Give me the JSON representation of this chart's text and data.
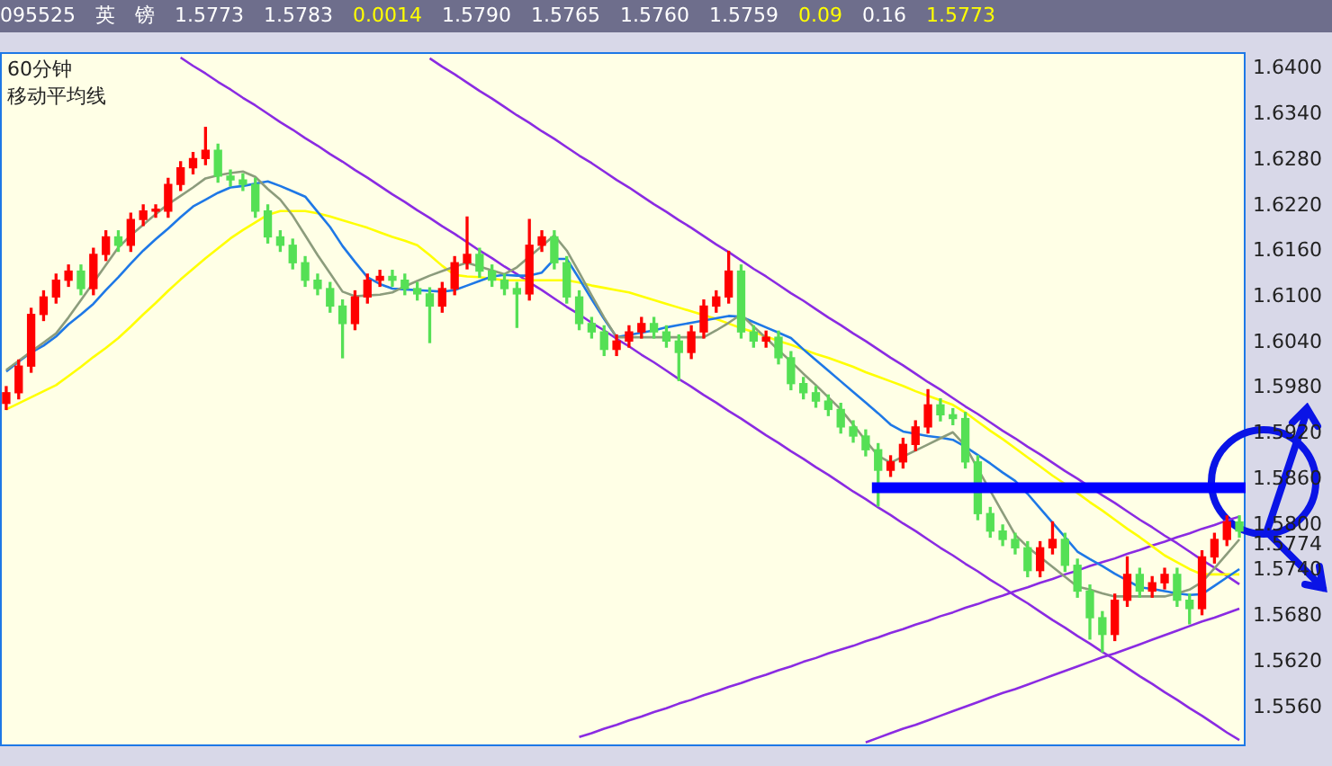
{
  "chart_data": {
    "type": "candlestick",
    "title": "60分钟",
    "subtitle": "移动平均线",
    "annotations": [
      "095525",
      "英",
      "镑",
      "1.5773",
      "1.5783",
      "0.0014",
      "1.5790",
      "1.5765",
      "1.5760",
      "1.5759",
      "0.09",
      "0.16",
      "1.5773"
    ],
    "categories": [
      null,
      null,
      null,
      null,
      null,
      null,
      null,
      null,
      null,
      null,
      null,
      null,
      null,
      null,
      null,
      null,
      null,
      null,
      null,
      null,
      null,
      null,
      null,
      null,
      null,
      null,
      null,
      null,
      null,
      null,
      null,
      null,
      null,
      null,
      null,
      null,
      null,
      null,
      null,
      null,
      null,
      null,
      null,
      null,
      null,
      null,
      null,
      null,
      null,
      null,
      null,
      null,
      null,
      null,
      null,
      null,
      null,
      null,
      null,
      null,
      null,
      null,
      null,
      null,
      null,
      null,
      null,
      null,
      null,
      null,
      null,
      null,
      null,
      null,
      null,
      null,
      null,
      null,
      null,
      null,
      null,
      null,
      null,
      null,
      null,
      null,
      null,
      null,
      null,
      null,
      null,
      null,
      null,
      null,
      null,
      null,
      null,
      null,
      null,
      null
    ],
    "ohlc": [
      [
        1.596,
        1.5982,
        1.5952,
        1.5974
      ],
      [
        1.5974,
        1.6017,
        1.5966,
        1.6009
      ],
      [
        1.6009,
        1.6085,
        1.6001,
        1.6077
      ],
      [
        1.6077,
        1.6108,
        1.6069,
        1.61
      ],
      [
        1.61,
        1.613,
        1.6092,
        1.6122
      ],
      [
        1.6122,
        1.6142,
        1.6114,
        1.6134
      ],
      [
        1.6134,
        1.6142,
        1.6103,
        1.6111
      ],
      [
        1.6111,
        1.6164,
        1.6103,
        1.6156
      ],
      [
        1.6156,
        1.6187,
        1.6148,
        1.6179
      ],
      [
        1.6179,
        1.6187,
        1.616,
        1.6168
      ],
      [
        1.6168,
        1.621,
        1.616,
        1.6202
      ],
      [
        1.6202,
        1.6221,
        1.6194,
        1.6213
      ],
      [
        1.6213,
        1.6221,
        1.6205,
        1.6213
      ],
      [
        1.6213,
        1.6256,
        1.6205,
        1.6248
      ],
      [
        1.6248,
        1.6278,
        1.624,
        1.627
      ],
      [
        1.627,
        1.629,
        1.6262,
        1.6282
      ],
      [
        1.6282,
        1.6323,
        1.6274,
        1.6293
      ],
      [
        1.6293,
        1.6301,
        1.6251,
        1.6259
      ],
      [
        1.6259,
        1.6267,
        1.6246,
        1.6254
      ],
      [
        1.6254,
        1.6262,
        1.624,
        1.6248
      ],
      [
        1.6248,
        1.6256,
        1.6205,
        1.6213
      ],
      [
        1.6213,
        1.6221,
        1.6171,
        1.6179
      ],
      [
        1.6179,
        1.6187,
        1.616,
        1.6168
      ],
      [
        1.6168,
        1.6176,
        1.6137,
        1.6145
      ],
      [
        1.6145,
        1.6153,
        1.6114,
        1.6122
      ],
      [
        1.6122,
        1.613,
        1.6103,
        1.6111
      ],
      [
        1.6111,
        1.6119,
        1.608,
        1.6088
      ],
      [
        1.6088,
        1.6096,
        1.602,
        1.6065
      ],
      [
        1.6065,
        1.6108,
        1.6057,
        1.61
      ],
      [
        1.61,
        1.613,
        1.6092,
        1.6122
      ],
      [
        1.6122,
        1.6135,
        1.6114,
        1.6127
      ],
      [
        1.6127,
        1.6135,
        1.6114,
        1.6122
      ],
      [
        1.6122,
        1.613,
        1.6103,
        1.6111
      ],
      [
        1.6111,
        1.6119,
        1.6096,
        1.6104
      ],
      [
        1.6104,
        1.6112,
        1.604,
        1.6088
      ],
      [
        1.6088,
        1.6119,
        1.608,
        1.6111
      ],
      [
        1.6111,
        1.6153,
        1.6103,
        1.6145
      ],
      [
        1.6145,
        1.6205,
        1.6137,
        1.6156
      ],
      [
        1.6156,
        1.6164,
        1.6126,
        1.6134
      ],
      [
        1.6134,
        1.6142,
        1.6114,
        1.6122
      ],
      [
        1.6122,
        1.613,
        1.6103,
        1.6111
      ],
      [
        1.6111,
        1.6119,
        1.606,
        1.6104
      ],
      [
        1.6104,
        1.6202,
        1.6096,
        1.6168
      ],
      [
        1.6168,
        1.6187,
        1.616,
        1.6179
      ],
      [
        1.6179,
        1.6187,
        1.6137,
        1.6145
      ],
      [
        1.6145,
        1.6153,
        1.6092,
        1.61
      ],
      [
        1.61,
        1.6108,
        1.6057,
        1.6065
      ],
      [
        1.6065,
        1.6073,
        1.6046,
        1.6054
      ],
      [
        1.6054,
        1.6062,
        1.6023,
        1.6031
      ],
      [
        1.6031,
        1.605,
        1.6023,
        1.6042
      ],
      [
        1.6042,
        1.6062,
        1.6034,
        1.6054
      ],
      [
        1.6054,
        1.6073,
        1.6046,
        1.6065
      ],
      [
        1.6065,
        1.6073,
        1.6046,
        1.6054
      ],
      [
        1.6054,
        1.6062,
        1.6034,
        1.6042
      ],
      [
        1.6042,
        1.605,
        1.599,
        1.6027
      ],
      [
        1.6027,
        1.6062,
        1.6019,
        1.6054
      ],
      [
        1.6054,
        1.6096,
        1.6046,
        1.6088
      ],
      [
        1.6088,
        1.6108,
        1.608,
        1.61
      ],
      [
        1.61,
        1.616,
        1.6092,
        1.6134
      ],
      [
        1.6134,
        1.6142,
        1.6046,
        1.6054
      ],
      [
        1.6054,
        1.6062,
        1.6034,
        1.6042
      ],
      [
        1.6042,
        1.6055,
        1.6034,
        1.6047
      ],
      [
        1.6047,
        1.6055,
        1.6012,
        1.602
      ],
      [
        1.602,
        1.6028,
        1.5978,
        1.5986
      ],
      [
        1.5986,
        1.5994,
        1.5966,
        1.5974
      ],
      [
        1.5974,
        1.5982,
        1.5955,
        1.5963
      ],
      [
        1.5963,
        1.5971,
        1.5944,
        1.5952
      ],
      [
        1.5952,
        1.596,
        1.5921,
        1.5929
      ],
      [
        1.5929,
        1.5937,
        1.5909,
        1.5917
      ],
      [
        1.5917,
        1.5925,
        1.5891,
        1.5899
      ],
      [
        1.5899,
        1.5907,
        1.5825,
        1.5872
      ],
      [
        1.5872,
        1.5891,
        1.5864,
        1.5883
      ],
      [
        1.5883,
        1.5914,
        1.5875,
        1.5906
      ],
      [
        1.5906,
        1.5937,
        1.5898,
        1.5929
      ],
      [
        1.5929,
        1.5978,
        1.5921,
        1.5958
      ],
      [
        1.5958,
        1.5966,
        1.5937,
        1.5945
      ],
      [
        1.5945,
        1.5953,
        1.5932,
        1.594
      ],
      [
        1.594,
        1.5948,
        1.5875,
        1.5883
      ],
      [
        1.5883,
        1.5891,
        1.5807,
        1.5815
      ],
      [
        1.5815,
        1.5823,
        1.5784,
        1.5792
      ],
      [
        1.5792,
        1.58,
        1.5773,
        1.5781
      ],
      [
        1.5781,
        1.5789,
        1.5762,
        1.577
      ],
      [
        1.577,
        1.5778,
        1.5732,
        1.574
      ],
      [
        1.574,
        1.5778,
        1.5732,
        1.577
      ],
      [
        1.577,
        1.5804,
        1.5762,
        1.5781
      ],
      [
        1.5781,
        1.5789,
        1.5739,
        1.5747
      ],
      [
        1.5747,
        1.5755,
        1.5705,
        1.5713
      ],
      [
        1.5713,
        1.5721,
        1.565,
        1.5678
      ],
      [
        1.5678,
        1.5686,
        1.5633,
        1.5656
      ],
      [
        1.5656,
        1.5709,
        1.5648,
        1.5701
      ],
      [
        1.5701,
        1.5758,
        1.5693,
        1.5735
      ],
      [
        1.5735,
        1.5743,
        1.5705,
        1.5713
      ],
      [
        1.5713,
        1.5732,
        1.5705,
        1.5724
      ],
      [
        1.5724,
        1.5743,
        1.5716,
        1.5735
      ],
      [
        1.5735,
        1.5743,
        1.5693,
        1.5701
      ],
      [
        1.5701,
        1.5709,
        1.567,
        1.569
      ],
      [
        1.569,
        1.5766,
        1.5682,
        1.5758
      ],
      [
        1.5758,
        1.5789,
        1.575,
        1.5781
      ],
      [
        1.5781,
        1.5812,
        1.5773,
        1.5804
      ],
      [
        1.5804,
        1.5812,
        1.5784,
        1.5792
      ]
    ],
    "series": [
      {
        "type": "line",
        "color": "#8c9c7c",
        "values": [
          1.6004,
          1.6016,
          1.6028,
          1.604,
          1.6052,
          1.6073,
          1.6096,
          1.6119,
          1.6142,
          1.6165,
          1.6181,
          1.6195,
          1.6209,
          1.6222,
          1.6233,
          1.6244,
          1.6256,
          1.626,
          1.6263,
          1.6265,
          1.6258,
          1.6242,
          1.6228,
          1.6207,
          1.6181,
          1.6155,
          1.6131,
          1.6107,
          1.6101,
          1.6102,
          1.6103,
          1.6106,
          1.6114,
          1.6121,
          1.6128,
          1.6134,
          1.614,
          1.6145,
          1.614,
          1.6135,
          1.613,
          1.6139,
          1.6153,
          1.6167,
          1.6181,
          1.6161,
          1.6132,
          1.6102,
          1.6073,
          1.6047,
          1.6047,
          1.6047,
          1.6047,
          1.6047,
          1.6047,
          1.6047,
          1.6047,
          1.6056,
          1.6066,
          1.6077,
          1.6061,
          1.6046,
          1.603,
          1.6015,
          1.5999,
          1.5984,
          1.5968,
          1.5952,
          1.5932,
          1.5911,
          1.5891,
          1.5882,
          1.589,
          1.5898,
          1.5906,
          1.5914,
          1.5922,
          1.5904,
          1.5874,
          1.5845,
          1.5816,
          1.5787,
          1.5771,
          1.5758,
          1.5745,
          1.5732,
          1.5719,
          1.5715,
          1.571,
          1.5706,
          1.5706,
          1.5706,
          1.5706,
          1.5706,
          1.571,
          1.5715,
          1.5725,
          1.5743,
          1.5762,
          1.5781
        ]
      },
      {
        "type": "line",
        "color": "#1e78e6",
        "values": [
          1.6002,
          1.6015,
          1.6027,
          1.6036,
          1.6048,
          1.6064,
          1.6077,
          1.6091,
          1.6109,
          1.6126,
          1.6144,
          1.6161,
          1.6176,
          1.619,
          1.6205,
          1.6219,
          1.6228,
          1.6237,
          1.6244,
          1.6246,
          1.6249,
          1.6252,
          1.6246,
          1.6239,
          1.6232,
          1.6212,
          1.6192,
          1.6167,
          1.6146,
          1.6126,
          1.6117,
          1.6111,
          1.611,
          1.6109,
          1.6108,
          1.6107,
          1.6109,
          1.6115,
          1.6121,
          1.6127,
          1.6129,
          1.6128,
          1.6128,
          1.6132,
          1.615,
          1.615,
          1.6124,
          1.6097,
          1.6071,
          1.6047,
          1.605,
          1.6053,
          1.6056,
          1.606,
          1.6063,
          1.6066,
          1.6069,
          1.6072,
          1.6075,
          1.6074,
          1.6067,
          1.606,
          1.6053,
          1.6046,
          1.6031,
          1.6017,
          1.6003,
          1.5989,
          1.5975,
          1.5961,
          1.5947,
          1.5932,
          1.5923,
          1.592,
          1.5917,
          1.5915,
          1.5912,
          1.5903,
          1.5892,
          1.5881,
          1.5869,
          1.5858,
          1.5841,
          1.5822,
          1.5803,
          1.5784,
          1.5765,
          1.5755,
          1.5746,
          1.5736,
          1.5727,
          1.5718,
          1.5716,
          1.5713,
          1.571,
          1.5708,
          1.5709,
          1.572,
          1.5731,
          1.5742
        ]
      },
      {
        "type": "line",
        "color": "#ffff00",
        "values": [
          1.5952,
          1.596,
          1.5968,
          1.5976,
          1.5984,
          1.5996,
          1.6008,
          1.6021,
          1.6033,
          1.6046,
          1.6061,
          1.6077,
          1.6092,
          1.6108,
          1.6123,
          1.6137,
          1.6151,
          1.6164,
          1.6177,
          1.6188,
          1.6198,
          1.6208,
          1.6213,
          1.6213,
          1.6213,
          1.621,
          1.6206,
          1.6201,
          1.6196,
          1.6191,
          1.6185,
          1.6179,
          1.6174,
          1.6168,
          1.6155,
          1.6141,
          1.6129,
          1.6127,
          1.6126,
          1.6124,
          1.6122,
          1.6122,
          1.6122,
          1.6122,
          1.6122,
          1.6122,
          1.6119,
          1.6115,
          1.6112,
          1.6109,
          1.6106,
          1.6101,
          1.6096,
          1.6091,
          1.6086,
          1.6081,
          1.6076,
          1.6071,
          1.6065,
          1.6059,
          1.6054,
          1.6048,
          1.6042,
          1.6037,
          1.6031,
          1.6025,
          1.602,
          1.6014,
          1.6008,
          1.6001,
          1.5995,
          1.5989,
          1.5983,
          1.5976,
          1.597,
          1.5964,
          1.5958,
          1.5948,
          1.5936,
          1.5924,
          1.5913,
          1.5901,
          1.5889,
          1.5877,
          1.5865,
          1.5854,
          1.5842,
          1.583,
          1.5819,
          1.5807,
          1.5795,
          1.5784,
          1.5772,
          1.576,
          1.5751,
          1.5742,
          1.5735,
          1.5735,
          1.5735,
          1.5735
        ]
      },
      {
        "type": "line",
        "color": "#8a2be2",
        "values": [
          null,
          null,
          null,
          null,
          null,
          null,
          null,
          null,
          null,
          null,
          null,
          null,
          null,
          null,
          1.6415,
          1.6404,
          1.6394,
          1.6383,
          1.6373,
          1.6362,
          1.6352,
          1.6341,
          1.633,
          1.632,
          1.6309,
          1.6299,
          1.6288,
          1.6278,
          1.6267,
          1.6257,
          1.6246,
          1.6235,
          1.6225,
          1.6214,
          1.6204,
          1.6193,
          1.6183,
          1.6172,
          1.6161,
          1.6151,
          1.614,
          1.613,
          1.6119,
          1.6109,
          1.6098,
          1.6087,
          1.6077,
          1.6066,
          1.6056,
          1.6045,
          1.6035,
          1.6024,
          1.6014,
          1.6003,
          1.5992,
          1.5982,
          1.5971,
          1.5961,
          1.595,
          1.594,
          1.5929,
          1.5918,
          1.5908,
          1.5897,
          1.5887,
          1.5876,
          1.5866,
          1.5855,
          1.5844,
          1.5834,
          1.5823,
          1.5813,
          1.5802,
          1.5792,
          1.5781,
          1.577,
          1.576,
          1.5749,
          1.5739,
          1.5728,
          1.5718,
          1.5707,
          1.5697,
          1.5686,
          1.5675,
          1.5665,
          1.5654,
          1.5644,
          1.5633,
          1.5623,
          1.5612,
          1.5601,
          1.5591,
          1.558,
          1.557,
          1.5559,
          1.5549,
          1.5538,
          1.5527,
          1.5517
        ]
      },
      {
        "type": "line",
        "color": "#8a2be2",
        "values": [
          null,
          null,
          null,
          null,
          null,
          null,
          null,
          null,
          null,
          null,
          null,
          null,
          null,
          null,
          null,
          null,
          null,
          null,
          null,
          null,
          null,
          null,
          null,
          null,
          null,
          null,
          null,
          null,
          null,
          null,
          null,
          null,
          null,
          null,
          1.6414,
          1.6403,
          1.6393,
          1.6382,
          1.6371,
          1.6361,
          1.635,
          1.6339,
          1.6329,
          1.6318,
          1.6308,
          1.6297,
          1.6286,
          1.6276,
          1.6265,
          1.6254,
          1.6244,
          1.6233,
          1.6222,
          1.6212,
          1.6201,
          1.6191,
          1.618,
          1.6169,
          1.6159,
          1.6148,
          1.6137,
          1.6127,
          1.6116,
          1.6105,
          1.6095,
          1.6084,
          1.6073,
          1.6063,
          1.6052,
          1.6042,
          1.6031,
          1.602,
          1.601,
          1.5999,
          1.5988,
          1.5978,
          1.5967,
          1.5956,
          1.5946,
          1.5935,
          1.5924,
          1.5914,
          1.5903,
          1.5893,
          1.5882,
          1.5871,
          1.5861,
          1.585,
          1.5839,
          1.5829,
          1.5818,
          1.5807,
          1.5797,
          1.5786,
          1.5776,
          1.5765,
          1.5754,
          1.5744,
          1.5733,
          1.5722
        ]
      },
      {
        "type": "line",
        "color": "#8a2be2",
        "values": [
          null,
          null,
          null,
          null,
          null,
          null,
          null,
          null,
          null,
          null,
          null,
          null,
          null,
          null,
          null,
          null,
          null,
          null,
          null,
          null,
          null,
          null,
          null,
          null,
          null,
          null,
          null,
          null,
          null,
          null,
          null,
          null,
          null,
          null,
          null,
          null,
          null,
          null,
          null,
          null,
          null,
          null,
          null,
          null,
          null,
          null,
          1.5521,
          1.5526,
          1.5532,
          1.5537,
          1.5543,
          1.5548,
          1.5554,
          1.5559,
          1.5565,
          1.557,
          1.5576,
          1.5581,
          1.5587,
          1.5592,
          1.5598,
          1.5603,
          1.5609,
          1.5614,
          1.562,
          1.5625,
          1.5631,
          1.5636,
          1.5641,
          1.5647,
          1.5652,
          1.5658,
          1.5663,
          1.5669,
          1.5674,
          1.568,
          1.5685,
          1.5691,
          1.5696,
          1.5702,
          1.5707,
          1.5713,
          1.5718,
          1.5724,
          1.5729,
          1.5735,
          1.574,
          1.5746,
          1.5751,
          1.5756,
          1.5762,
          1.5767,
          1.5773,
          1.5778,
          1.5784,
          1.5789,
          1.5795,
          1.58,
          1.5806,
          1.5811
        ]
      },
      {
        "type": "line",
        "color": "#8a2be2",
        "values": [
          null,
          null,
          null,
          null,
          null,
          null,
          null,
          null,
          null,
          null,
          null,
          null,
          null,
          null,
          null,
          null,
          null,
          null,
          null,
          null,
          null,
          null,
          null,
          null,
          null,
          null,
          null,
          null,
          null,
          null,
          null,
          null,
          null,
          null,
          null,
          null,
          null,
          null,
          null,
          null,
          null,
          null,
          null,
          null,
          null,
          null,
          null,
          null,
          null,
          null,
          null,
          null,
          null,
          null,
          null,
          null,
          null,
          null,
          null,
          null,
          null,
          null,
          null,
          null,
          null,
          null,
          null,
          null,
          null,
          1.5514,
          1.552,
          1.5526,
          1.5532,
          1.5537,
          1.5543,
          1.5549,
          1.5555,
          1.5561,
          1.5567,
          1.5573,
          1.5579,
          1.5584,
          1.559,
          1.5596,
          1.5602,
          1.5608,
          1.5614,
          1.562,
          1.5626,
          1.5631,
          1.5637,
          1.5643,
          1.5649,
          1.5655,
          1.5661,
          1.5667,
          1.5673,
          1.5678,
          1.5684,
          1.569
        ]
      }
    ],
    "ref_lines": [
      {
        "axis": "y",
        "value": 1.5849,
        "color": "#0000ff"
      }
    ],
    "ylim": [
      1.5508,
      1.6423
    ],
    "yticks": [
      {
        "value": 1.64,
        "label": "1.6400"
      },
      {
        "value": 1.634,
        "label": "1.6340"
      },
      {
        "value": 1.628,
        "label": "1.6280"
      },
      {
        "value": 1.622,
        "label": "1.6220"
      },
      {
        "value": 1.616,
        "label": "1.6160"
      },
      {
        "value": 1.61,
        "label": "1.6100"
      },
      {
        "value": 1.604,
        "label": "1.6040"
      },
      {
        "value": 1.598,
        "label": "1.5980"
      },
      {
        "value": 1.592,
        "label": "1.5920"
      },
      {
        "value": 1.586,
        "label": "1.5860"
      },
      {
        "value": 1.58,
        "label": "1.5800"
      },
      {
        "value": 1.5774,
        "label": "1.5774"
      },
      {
        "value": 1.574,
        "label": "1.5740"
      },
      {
        "value": 1.568,
        "label": "1.5680"
      },
      {
        "value": 1.562,
        "label": "1.5620"
      },
      {
        "value": 1.556,
        "label": "1.5560"
      }
    ],
    "tick_labels": "y",
    "grid": false,
    "legend": false,
    "marker": "none",
    "line_style": "solid"
  }
}
